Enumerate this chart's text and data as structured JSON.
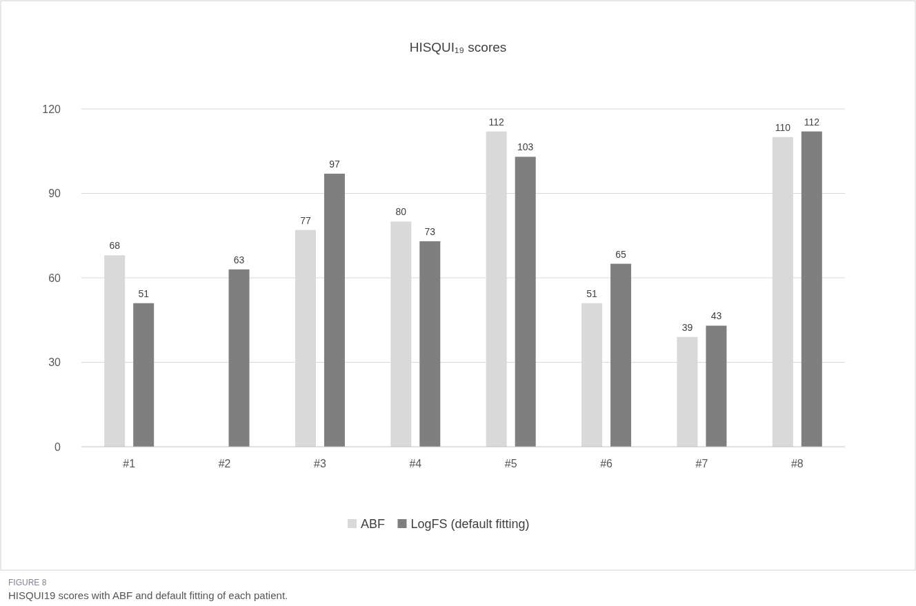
{
  "chart_data": {
    "type": "bar",
    "title": "HISQUI₁₉ scores",
    "categories": [
      "#1",
      "#2",
      "#3",
      "#4",
      "#5",
      "#6",
      "#7",
      "#8"
    ],
    "series": [
      {
        "name": "ABF",
        "color": "#d9d9d9",
        "values": [
          68,
          null,
          77,
          80,
          112,
          51,
          39,
          110
        ]
      },
      {
        "name": "LogFS (default fitting)",
        "color": "#7f7f7f",
        "values": [
          51,
          63,
          97,
          73,
          103,
          65,
          43,
          112
        ]
      }
    ],
    "ylim": [
      0,
      120
    ],
    "yticks": [
      0,
      30,
      60,
      90,
      120
    ],
    "grid": "y",
    "legend": "bottom",
    "data_labels": true,
    "annotations": [
      "FIGURE 8",
      "HISQUI19 scores with ABF and default fitting of each patient."
    ]
  }
}
